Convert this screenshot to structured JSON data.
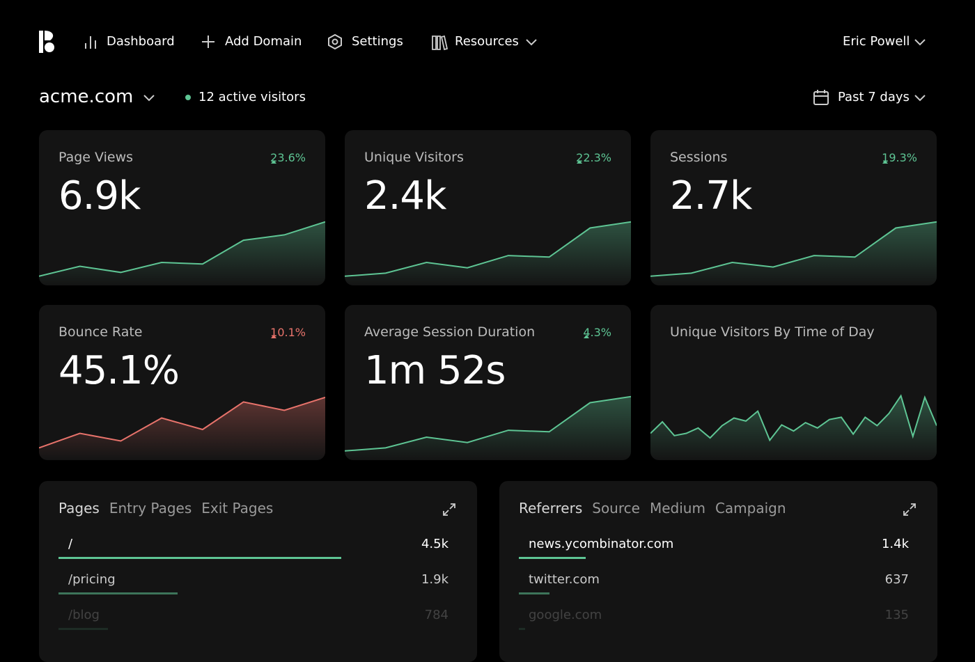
{
  "nav": {
    "items": [
      "Dashboard",
      "Add Domain",
      "Settings",
      "Resources"
    ],
    "user": "Eric Powell"
  },
  "site": {
    "domain": "acme.com",
    "active_visitors": "12 active visitors",
    "range": "Past 7 days"
  },
  "cards": [
    {
      "title": "Page Views",
      "value": "6.9k",
      "change": "23.6%",
      "color": "#5ec594",
      "ylim": [
        0,
        100
      ],
      "values": [
        12,
        25,
        17,
        30,
        28,
        59,
        66,
        83
      ]
    },
    {
      "title": "Unique Visitors",
      "value": "2.4k",
      "change": "22.3%",
      "color": "#5ec594",
      "ylim": [
        0,
        100
      ],
      "values": [
        12,
        16,
        30,
        23,
        39,
        37,
        75,
        83
      ]
    },
    {
      "title": "Sessions",
      "value": "2.7k",
      "change": "19.3%",
      "color": "#5ec594",
      "ylim": [
        0,
        100
      ],
      "values": [
        12,
        16,
        30,
        24,
        39,
        37,
        75,
        83
      ]
    },
    {
      "title": "Bounce Rate",
      "value": "45.1%",
      "change": "10.1%",
      "color": "#e8736b",
      "ylim": [
        0,
        100
      ],
      "values": [
        16,
        35,
        25,
        55,
        40,
        76,
        65,
        82
      ]
    },
    {
      "title": "Average Session Duration",
      "value": "1m 52s",
      "change": "4.3%",
      "color": "#5ec594",
      "ylim": [
        0,
        100
      ],
      "values": [
        12,
        16,
        30,
        23,
        39,
        37,
        75,
        83
      ]
    },
    {
      "title": "Unique Visitors By Time of Day",
      "color": "#5ec594",
      "ylim": [
        0,
        100
      ],
      "values": [
        35,
        50,
        32,
        35,
        42,
        29,
        45,
        55,
        51,
        64,
        26,
        46,
        38,
        49,
        42,
        53,
        56,
        34,
        56,
        45,
        61,
        84,
        31,
        82,
        45
      ]
    }
  ],
  "panels": [
    {
      "tabs": [
        "Pages",
        "Entry Pages",
        "Exit Pages"
      ],
      "color": "#5ec594",
      "rows": [
        {
          "label": "/",
          "value": 4500,
          "value_label": "4.5k"
        },
        {
          "label": "/pricing",
          "value": 1900,
          "value_label": "1.9k"
        },
        {
          "label": "/blog",
          "value": 784
        }
      ]
    },
    {
      "tabs": [
        "Referrers",
        "Source",
        "Medium",
        "Campaign"
      ],
      "color": "#5ec594",
      "rows": [
        {
          "label": "news.ycombinator.com",
          "value": 1400,
          "value_label": "1.4k"
        },
        {
          "label": "twitter.com",
          "value": 637
        },
        {
          "label": "google.com",
          "value": 135
        }
      ]
    }
  ]
}
